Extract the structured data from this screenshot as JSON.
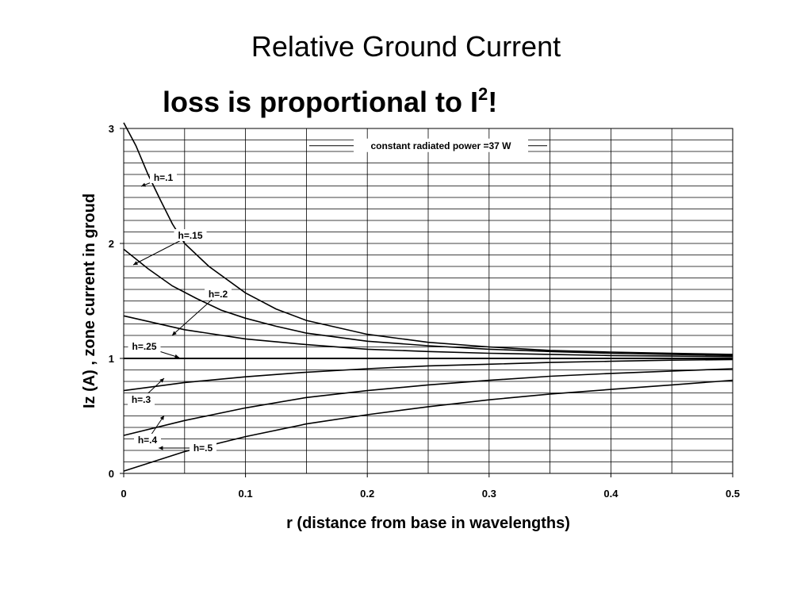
{
  "slide": {
    "title": "Relative Ground Current",
    "subtitle_main": "loss is proportional to I",
    "subtitle_sup": "2",
    "subtitle_end": "!"
  },
  "chart_data": {
    "type": "line",
    "xlabel": "r (distance from base in wavelengths)",
    "ylabel": "Iz (A) , zone current in groud",
    "xlim": [
      0,
      0.5
    ],
    "ylim": [
      0,
      3
    ],
    "x_ticks": [
      "0",
      "0.1",
      "0.2",
      "0.3",
      "0.4",
      "0.5"
    ],
    "y_ticks": [
      "0",
      "1",
      "2",
      "3"
    ],
    "grid": true,
    "annotation": "constant radiated power =37 W",
    "reference_line": 1,
    "series": [
      {
        "name": "h=.1",
        "x": [
          0,
          0.01,
          0.02,
          0.03,
          0.04,
          0.05,
          0.07,
          0.1,
          0.125,
          0.15,
          0.2,
          0.25,
          0.3,
          0.35,
          0.4,
          0.45,
          0.5
        ],
        "y": [
          3.05,
          2.85,
          2.6,
          2.38,
          2.17,
          2.0,
          1.8,
          1.57,
          1.43,
          1.33,
          1.21,
          1.14,
          1.1,
          1.07,
          1.055,
          1.045,
          1.035
        ]
      },
      {
        "name": "h=.15",
        "x": [
          0,
          0.02,
          0.04,
          0.06,
          0.08,
          0.1,
          0.125,
          0.15,
          0.2,
          0.25,
          0.3,
          0.35,
          0.4,
          0.45,
          0.5
        ],
        "y": [
          1.95,
          1.78,
          1.63,
          1.52,
          1.42,
          1.35,
          1.28,
          1.22,
          1.15,
          1.11,
          1.08,
          1.06,
          1.045,
          1.035,
          1.025
        ]
      },
      {
        "name": "h=.2",
        "x": [
          0,
          0.05,
          0.1,
          0.15,
          0.2,
          0.25,
          0.3,
          0.35,
          0.4,
          0.45,
          0.5
        ],
        "y": [
          1.37,
          1.25,
          1.17,
          1.12,
          1.08,
          1.06,
          1.045,
          1.035,
          1.025,
          1.02,
          1.015
        ]
      },
      {
        "name": "h=.25",
        "x": [
          0,
          0.1,
          0.2,
          0.3,
          0.4,
          0.5
        ],
        "y": [
          1.0,
          1.0,
          1.0,
          1.0,
          1.0,
          1.0
        ]
      },
      {
        "name": "h=.3",
        "x": [
          0,
          0.05,
          0.1,
          0.15,
          0.2,
          0.25,
          0.3,
          0.35,
          0.4,
          0.45,
          0.5
        ],
        "y": [
          0.72,
          0.79,
          0.84,
          0.88,
          0.91,
          0.935,
          0.95,
          0.965,
          0.975,
          0.985,
          0.99
        ]
      },
      {
        "name": "h=.4",
        "x": [
          0,
          0.05,
          0.1,
          0.15,
          0.2,
          0.25,
          0.3,
          0.35,
          0.4,
          0.45,
          0.5
        ],
        "y": [
          0.33,
          0.46,
          0.57,
          0.66,
          0.72,
          0.77,
          0.81,
          0.845,
          0.87,
          0.89,
          0.91
        ]
      },
      {
        "name": "h=.5",
        "x": [
          0,
          0.05,
          0.1,
          0.15,
          0.2,
          0.25,
          0.3,
          0.35,
          0.4,
          0.45,
          0.5
        ],
        "y": [
          0.02,
          0.19,
          0.32,
          0.43,
          0.51,
          0.58,
          0.64,
          0.69,
          0.73,
          0.77,
          0.81
        ]
      }
    ]
  }
}
